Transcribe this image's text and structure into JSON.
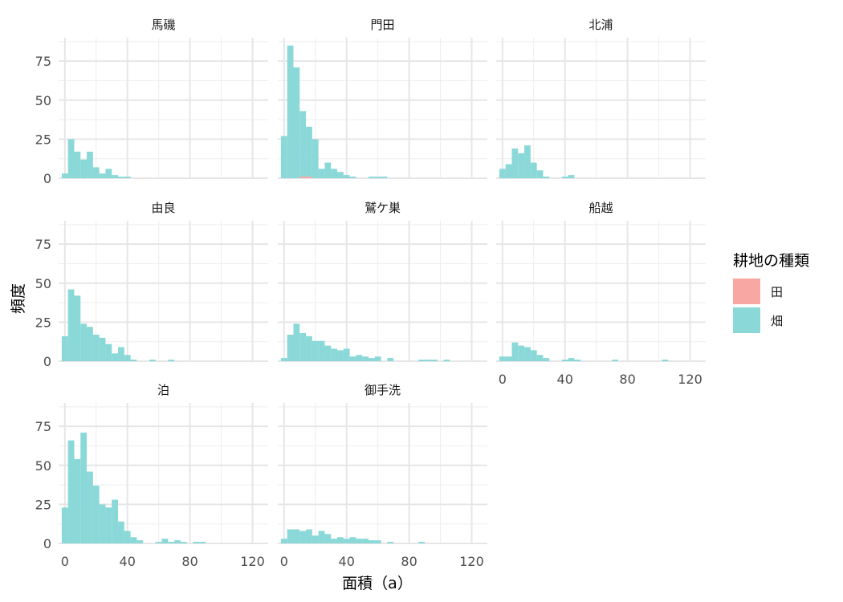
{
  "chart_data": {
    "type": "histogram",
    "xlabel": "面積（a）",
    "ylabel": "頻度",
    "xlim": [
      -4,
      130
    ],
    "ylim": [
      0,
      90
    ],
    "x_ticks": [
      0,
      40,
      80,
      120
    ],
    "x_tick_labels": [
      "0",
      "40",
      "80",
      "120"
    ],
    "y_ticks": [
      0,
      25,
      50,
      75
    ],
    "y_tick_labels": [
      "0",
      "25",
      "50",
      "75"
    ],
    "bin_width": 4,
    "bin_starts": [
      -2,
      2,
      6,
      10,
      14,
      18,
      22,
      26,
      30,
      34,
      38,
      42,
      46,
      50,
      54,
      58,
      62,
      66,
      70,
      74,
      78,
      82,
      86,
      90,
      94,
      98,
      102,
      106,
      110,
      114,
      118,
      122
    ],
    "grid": true,
    "legend": {
      "title": "耕地の種類",
      "position": "right",
      "entries": [
        {
          "label": "田",
          "color": "#F8A7A2"
        },
        {
          "label": "畑",
          "color": "#8AD8D8"
        }
      ]
    },
    "panels": [
      {
        "title": "馬磯",
        "series": [
          {
            "name": "田",
            "values": [
              0,
              0,
              0,
              0,
              0,
              0,
              0,
              0,
              0,
              0,
              0,
              0,
              0,
              0,
              0,
              0,
              0,
              0,
              0,
              0,
              0,
              0,
              0,
              0,
              0,
              0,
              0,
              0,
              0,
              0,
              0,
              0
            ]
          },
          {
            "name": "畑",
            "values": [
              3,
              25,
              17,
              12,
              17,
              7,
              3,
              6,
              2,
              1,
              1,
              0,
              0,
              0,
              0,
              0,
              0,
              0,
              0,
              0,
              0,
              0,
              0,
              0,
              0,
              0,
              0,
              0,
              0,
              0,
              0,
              0
            ]
          }
        ]
      },
      {
        "title": "門田",
        "series": [
          {
            "name": "田",
            "values": [
              0,
              0,
              0,
              1,
              1,
              0,
              0,
              0,
              0,
              0,
              0,
              0,
              0,
              0,
              0,
              0,
              0,
              0,
              0,
              0,
              0,
              0,
              0,
              0,
              0,
              0,
              0,
              0,
              0,
              0,
              0,
              0
            ]
          },
          {
            "name": "畑",
            "values": [
              27,
              85,
              71,
              42,
              32,
              25,
              6,
              10,
              6,
              4,
              2,
              1,
              0,
              0,
              1,
              1,
              1,
              0,
              0,
              0,
              0,
              0,
              0,
              0,
              0,
              0,
              0,
              0,
              0,
              0,
              0,
              0
            ]
          }
        ]
      },
      {
        "title": "北浦",
        "series": [
          {
            "name": "田",
            "values": [
              0,
              0,
              0,
              0,
              0,
              0,
              0,
              0,
              0,
              0,
              0,
              0,
              0,
              0,
              0,
              0,
              0,
              0,
              0,
              0,
              0,
              0,
              0,
              0,
              0,
              0,
              0,
              0,
              0,
              0,
              0,
              0
            ]
          },
          {
            "name": "畑",
            "values": [
              6,
              9,
              19,
              16,
              21,
              10,
              5,
              1,
              0,
              0,
              1,
              2,
              0,
              0,
              0,
              0,
              0,
              0,
              0,
              0,
              0,
              0,
              0,
              0,
              0,
              0,
              0,
              0,
              0,
              0,
              0,
              0
            ]
          }
        ]
      },
      {
        "title": "由良",
        "series": [
          {
            "name": "田",
            "values": [
              0,
              0,
              0,
              0,
              0,
              0,
              0,
              0,
              0,
              0,
              0,
              0,
              0,
              0,
              0,
              0,
              0,
              0,
              0,
              0,
              0,
              0,
              0,
              0,
              0,
              0,
              0,
              0,
              0,
              0,
              0,
              0
            ]
          },
          {
            "name": "畑",
            "values": [
              16,
              46,
              42,
              24,
              22,
              17,
              15,
              11,
              5,
              9,
              4,
              1,
              0,
              0,
              1,
              0,
              0,
              1,
              0,
              0,
              0,
              0,
              0,
              0,
              0,
              0,
              0,
              0,
              0,
              0,
              0,
              0
            ]
          }
        ]
      },
      {
        "title": "鷲ケ巣",
        "series": [
          {
            "name": "田",
            "values": [
              0,
              0,
              0,
              0,
              0,
              0,
              0,
              0,
              0,
              0,
              0,
              0,
              0,
              0,
              0,
              0,
              0,
              0,
              0,
              0,
              0,
              0,
              0,
              0,
              0,
              0,
              0,
              0,
              0,
              0,
              0,
              0
            ]
          },
          {
            "name": "畑",
            "values": [
              2,
              17,
              24,
              18,
              16,
              13,
              13,
              10,
              8,
              7,
              8,
              3,
              4,
              3,
              2,
              3,
              0,
              2,
              0,
              0,
              0,
              0,
              1,
              1,
              1,
              0,
              1,
              0,
              0,
              0,
              0,
              0
            ]
          }
        ]
      },
      {
        "title": "船越",
        "series": [
          {
            "name": "田",
            "values": [
              0,
              0,
              0,
              0,
              0,
              0,
              0,
              0,
              0,
              0,
              0,
              0,
              0,
              0,
              0,
              0,
              0,
              0,
              0,
              0,
              0,
              0,
              0,
              0,
              0,
              0,
              0,
              0,
              0,
              0,
              0,
              0
            ]
          },
          {
            "name": "畑",
            "values": [
              3,
              3,
              12,
              10,
              9,
              7,
              4,
              2,
              0,
              0,
              1,
              2,
              1,
              0,
              0,
              0,
              0,
              0,
              1,
              0,
              0,
              0,
              0,
              0,
              0,
              0,
              1,
              0,
              0,
              0,
              0,
              0
            ]
          }
        ]
      },
      {
        "title": "泊",
        "series": [
          {
            "name": "田",
            "values": [
              0,
              0,
              0,
              0,
              0,
              0,
              0,
              0,
              0,
              0,
              0,
              0,
              0,
              0,
              0,
              0,
              0,
              0,
              0,
              0,
              0,
              0,
              0,
              0,
              0,
              0,
              0,
              0,
              0,
              0,
              0,
              0
            ]
          },
          {
            "name": "畑",
            "values": [
              23,
              66,
              54,
              71,
              46,
              37,
              25,
              23,
              28,
              14,
              8,
              4,
              2,
              0,
              0,
              1,
              3,
              1,
              2,
              1,
              0,
              1,
              1,
              0,
              0,
              0,
              0,
              0,
              0,
              0,
              0,
              0
            ]
          }
        ]
      },
      {
        "title": "御手洗",
        "series": [
          {
            "name": "田",
            "values": [
              0,
              0,
              0,
              0,
              0,
              0,
              0,
              0,
              0,
              0,
              0,
              0,
              0,
              0,
              0,
              0,
              0,
              0,
              0,
              0,
              0,
              0,
              0,
              0,
              0,
              0,
              0,
              0,
              0,
              0,
              0,
              0
            ]
          },
          {
            "name": "畑",
            "values": [
              3,
              9,
              9,
              8,
              9,
              5,
              8,
              6,
              3,
              4,
              3,
              4,
              3,
              3,
              2,
              2,
              0,
              1,
              0,
              0,
              0,
              0,
              1,
              0,
              0,
              0,
              0,
              0,
              0,
              0,
              0,
              0
            ]
          }
        ]
      }
    ]
  }
}
